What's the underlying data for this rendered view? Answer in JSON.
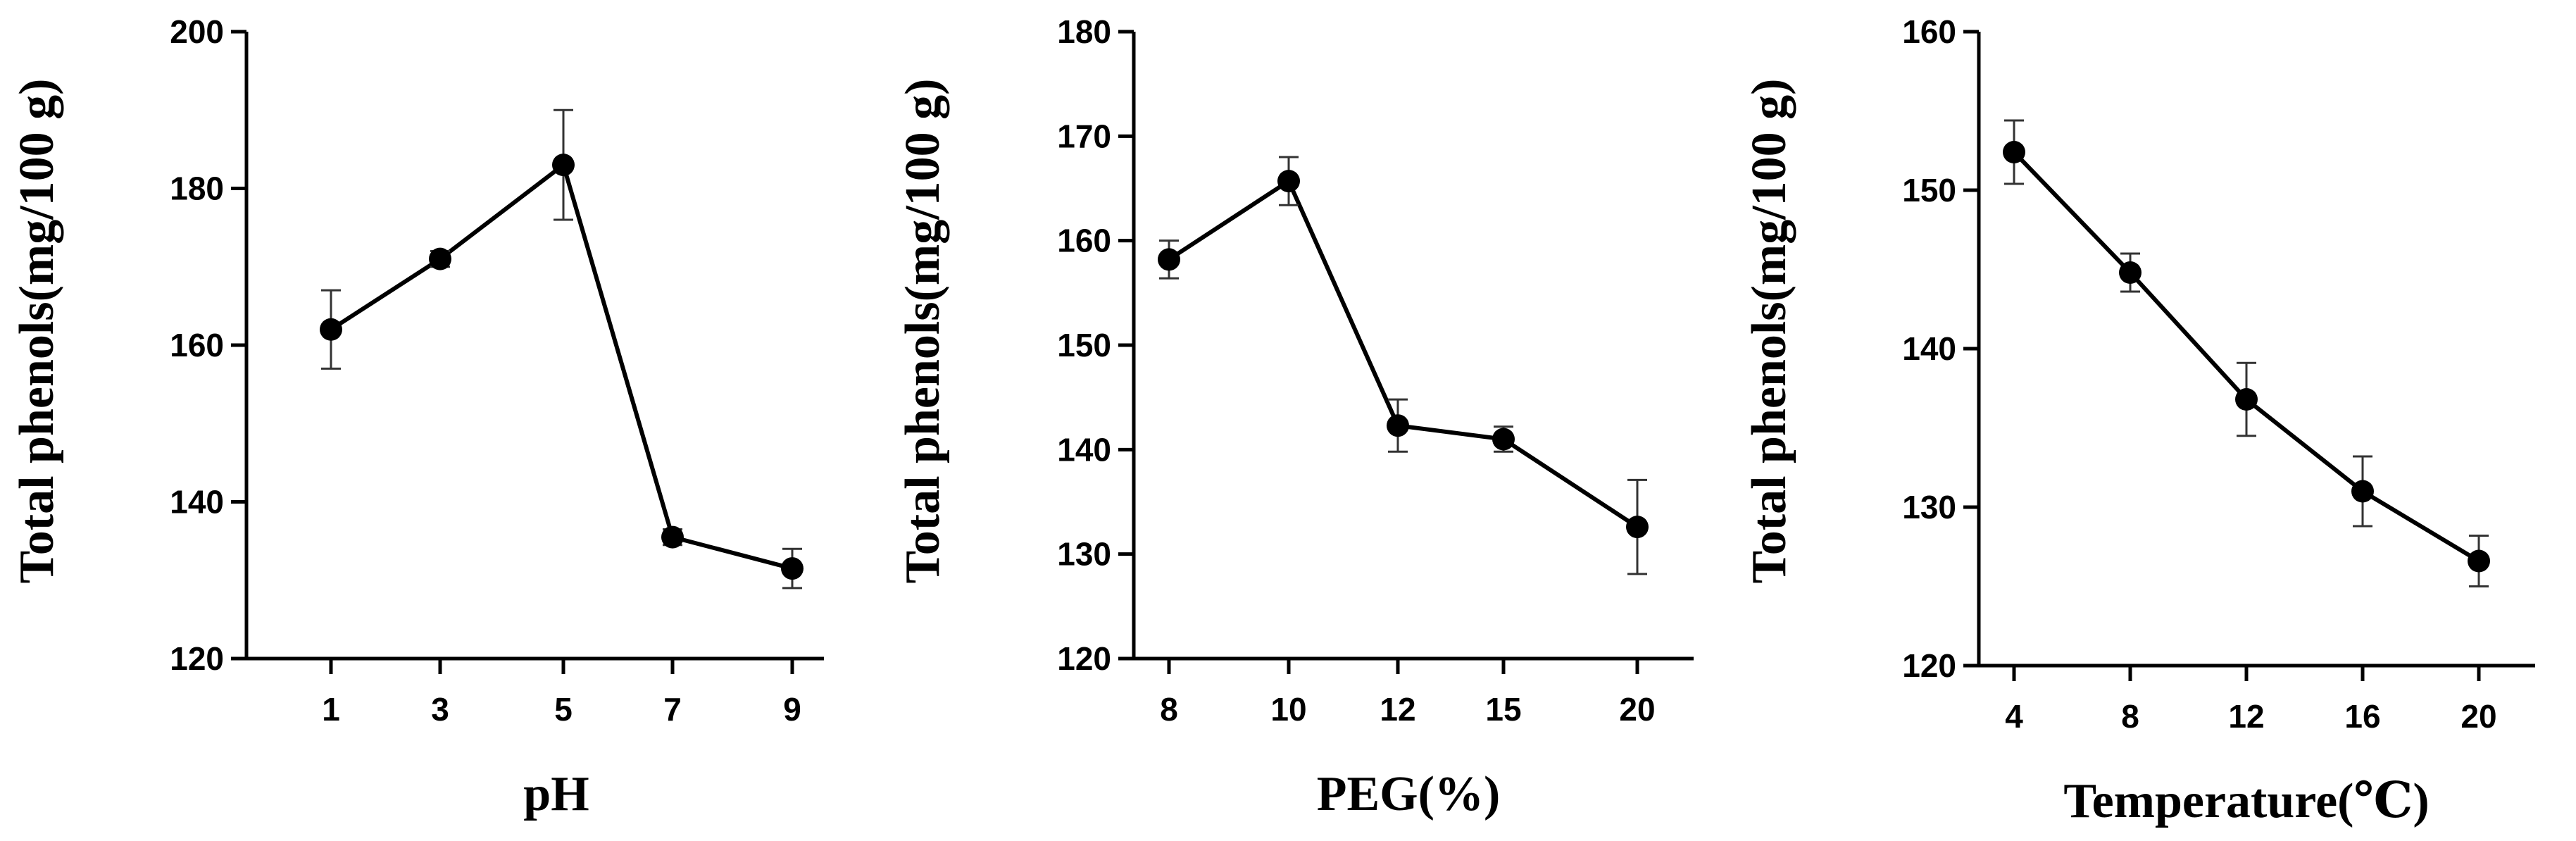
{
  "chart_data": [
    {
      "type": "line",
      "xlabel": "pH",
      "ylabel": "Total phenols(mg/100 g)",
      "categories": [
        "1",
        "3",
        "5",
        "7",
        "9"
      ],
      "ylim": [
        120,
        200
      ],
      "yticks": [
        120,
        140,
        160,
        180,
        200
      ],
      "values": [
        162,
        171,
        183,
        135.5,
        131.5
      ],
      "errors": [
        5,
        1,
        7,
        1,
        2.5
      ],
      "grid": false
    },
    {
      "type": "line",
      "xlabel": "PEG(%)",
      "ylabel": "Total phenols(mg/100 g)",
      "categories": [
        "8",
        "10",
        "12",
        "15",
        "20"
      ],
      "ylim": [
        120,
        180
      ],
      "yticks": [
        120,
        130,
        140,
        150,
        160,
        170,
        180
      ],
      "values": [
        158.2,
        165.7,
        142.3,
        141,
        132.6
      ],
      "errors": [
        1.8,
        2.3,
        2.5,
        1.2,
        4.5
      ],
      "grid": false
    },
    {
      "type": "line",
      "xlabel": "Temperature(℃)",
      "ylabel": "Total phenols(mg/100 g)",
      "categories": [
        "4",
        "8",
        "12",
        "16",
        "20"
      ],
      "ylim": [
        120,
        160
      ],
      "yticks": [
        120,
        130,
        140,
        150,
        160
      ],
      "values": [
        152.4,
        144.8,
        136.8,
        131,
        126.6
      ],
      "errors": [
        2,
        1.2,
        2.3,
        2.2,
        1.6
      ],
      "grid": false
    }
  ]
}
